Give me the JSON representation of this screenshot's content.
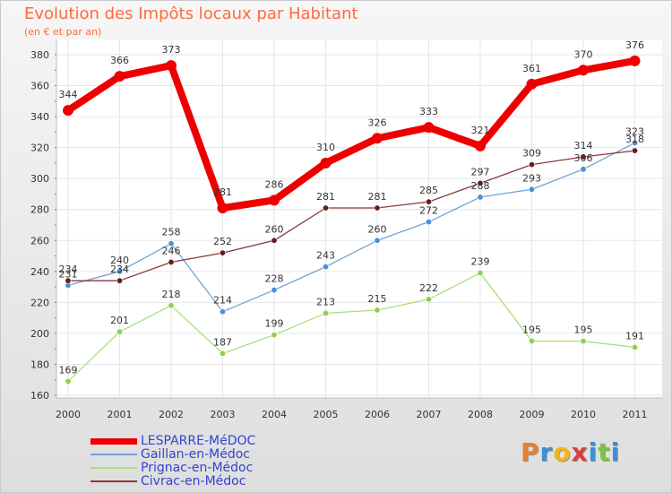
{
  "title": "Evolution des Impôts locaux par Habitant",
  "subtitle": "(en € et par an)",
  "brand": {
    "text": "Proxiti",
    "letter_colors": [
      "#e87f2e",
      "#3a8fd6",
      "#f2b41c",
      "#d6403a",
      "#3a8fd6",
      "#7ec242",
      "#3a8fd6"
    ]
  },
  "chart_data": {
    "type": "line",
    "title": "Evolution des Impôts locaux par Habitant",
    "subtitle": "(en € et par an)",
    "x": [
      "2000",
      "2001",
      "2002",
      "2003",
      "2004",
      "2005",
      "2006",
      "2007",
      "2008",
      "2009",
      "2010",
      "2011"
    ],
    "ylim": [
      160,
      380
    ],
    "yticks": [
      160,
      180,
      200,
      220,
      240,
      260,
      280,
      300,
      320,
      340,
      360,
      380
    ],
    "grid": true,
    "legend_position": "bottom-left",
    "series": [
      {
        "name": "LESPARRE-MéDOC",
        "color": "#ee0000",
        "marker_color": "#ee0000",
        "values": [
          344,
          366,
          373,
          281,
          286,
          310,
          326,
          333,
          321,
          361,
          370,
          376
        ]
      },
      {
        "name": "Gaillan-en-Médoc",
        "color": "#6fa3d6",
        "marker_color": "#4a90d9",
        "values": [
          231,
          240,
          258,
          214,
          228,
          243,
          260,
          272,
          288,
          293,
          306,
          323
        ]
      },
      {
        "name": "Prignac-en-Médoc",
        "color": "#a8e07a",
        "marker_color": "#8ed04e",
        "values": [
          169,
          201,
          218,
          187,
          199,
          213,
          215,
          222,
          239,
          195,
          195,
          191
        ]
      },
      {
        "name": "Civrac-en-Médoc",
        "color": "#8a3838",
        "marker_color": "#6b1a1a",
        "values": [
          234,
          234,
          246,
          252,
          260,
          281,
          281,
          285,
          297,
          309,
          314,
          318
        ]
      }
    ]
  }
}
